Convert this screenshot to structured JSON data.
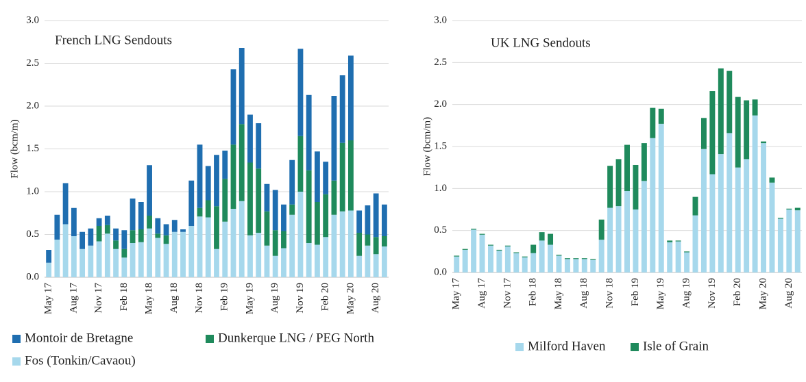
{
  "chart_data": [
    {
      "type": "bar",
      "stacked": true,
      "title": "French LNG Sendouts",
      "y_label": "Flow (bcm/m)",
      "categories": [
        "May 17",
        null,
        null,
        "Aug 17",
        null,
        null,
        "Nov 17",
        null,
        null,
        "Feb 18",
        null,
        null,
        "May 18",
        null,
        null,
        "Aug 18",
        null,
        null,
        "Nov 18",
        null,
        null,
        "Feb 19",
        null,
        null,
        "May 19",
        null,
        null,
        "Aug 19",
        null,
        null,
        "Nov 19",
        null,
        null,
        "Feb 20",
        null,
        null,
        "May 20",
        null,
        null,
        "Aug 20",
        null
      ],
      "ylim": [
        0,
        3
      ],
      "grid": true,
      "yticks": [
        {
          "value": 0,
          "label": "0.0"
        },
        {
          "value": 0.5,
          "label": "0.5"
        },
        {
          "value": 1,
          "label": "1.0"
        },
        {
          "value": 1.5,
          "label": "1.5"
        },
        {
          "value": 2,
          "label": "2.0"
        },
        {
          "value": 2.5,
          "label": "2.5"
        },
        {
          "value": 3,
          "label": "3.0"
        }
      ],
      "series": [
        {
          "name": "Fos (Tonkin/Cavaou)",
          "color": "#a6d8ec",
          "values": [
            0.17,
            0.44,
            0.62,
            0.48,
            0.33,
            0.37,
            0.42,
            0.51,
            0.33,
            0.23,
            0.4,
            0.41,
            0.57,
            0.46,
            0.39,
            0.53,
            0.53,
            0.6,
            0.71,
            0.7,
            0.33,
            0.65,
            0.8,
            0.89,
            0.49,
            0.52,
            0.37,
            0.25,
            0.34,
            0.73,
            1.0,
            0.4,
            0.38,
            0.47,
            0.73,
            0.77,
            0.78,
            0.25,
            0.37,
            0.27,
            0.36
          ]
        },
        {
          "name": "Dunkerque LNG / PEG North",
          "color": "#1f8a5c",
          "values": [
            0,
            0,
            0,
            0,
            0,
            0,
            0.18,
            0.1,
            0.1,
            0.1,
            0.15,
            0.15,
            0.15,
            0.05,
            0.1,
            0,
            0,
            0,
            0.1,
            0.2,
            0.5,
            0.5,
            0.75,
            0.9,
            0.85,
            0.75,
            0.4,
            0.3,
            0.2,
            0.12,
            0.65,
            0.85,
            0.5,
            0.5,
            0.4,
            0.8,
            0.82,
            0.27,
            0.13,
            0.2,
            0.12
          ]
        },
        {
          "name": "Montoir de Bretagne",
          "color": "#1f6eb0",
          "values": [
            0.15,
            0.29,
            0.48,
            0.33,
            0.2,
            0.2,
            0.09,
            0.11,
            0.14,
            0.22,
            0.37,
            0.32,
            0.59,
            0.18,
            0.13,
            0.14,
            0.03,
            0.53,
            0.74,
            0.4,
            0.6,
            0.33,
            0.88,
            0.89,
            0.56,
            0.53,
            0.32,
            0.47,
            0.31,
            0.52,
            1.02,
            0.88,
            0.59,
            0.38,
            0.99,
            0.79,
            0.99,
            0.26,
            0.34,
            0.51,
            0.37
          ]
        }
      ]
    },
    {
      "type": "bar",
      "stacked": true,
      "title": "UK LNG Sendouts",
      "y_label": "Flow (bcm/m)",
      "categories": [
        "May 17",
        null,
        null,
        "Aug 17",
        null,
        null,
        "Nov 17",
        null,
        null,
        "Feb 18",
        null,
        null,
        "May 18",
        null,
        null,
        "Aug 18",
        null,
        null,
        "Nov 18",
        null,
        null,
        "Feb 19",
        null,
        null,
        "May 19",
        null,
        null,
        "Aug 19",
        null,
        null,
        "Nov 19",
        null,
        null,
        "Feb 20",
        null,
        null,
        "May 20",
        null,
        null,
        "Aug 20",
        null
      ],
      "ylim": [
        0,
        3
      ],
      "grid": true,
      "yticks": [
        {
          "value": 0,
          "label": "0.0"
        },
        {
          "value": 0.5,
          "label": "0.5"
        },
        {
          "value": 1,
          "label": "1.0"
        },
        {
          "value": 1.5,
          "label": "1.5"
        },
        {
          "value": 2,
          "label": "2.0"
        },
        {
          "value": 2.5,
          "label": "2.5"
        },
        {
          "value": 3,
          "label": "3.0"
        }
      ],
      "series": [
        {
          "name": "Milford Haven",
          "color": "#a6d8ec",
          "values": [
            0.19,
            0.27,
            0.51,
            0.45,
            0.32,
            0.26,
            0.31,
            0.23,
            0.18,
            0.23,
            0.38,
            0.33,
            0.2,
            0.16,
            0.16,
            0.16,
            0.15,
            0.39,
            0.77,
            0.79,
            0.97,
            0.75,
            1.09,
            1.6,
            1.77,
            0.36,
            0.37,
            0.24,
            0.68,
            1.47,
            1.17,
            1.41,
            1.66,
            1.25,
            1.35,
            1.87,
            1.54,
            1.07,
            0.64,
            0.75,
            0.74
          ]
        },
        {
          "name": "Isle of Grain",
          "color": "#1f8a5c",
          "values": [
            0.01,
            0.01,
            0.01,
            0.01,
            0.01,
            0.01,
            0.01,
            0.01,
            0.01,
            0.1,
            0.1,
            0.13,
            0.01,
            0.01,
            0.01,
            0.01,
            0.01,
            0.24,
            0.5,
            0.56,
            0.55,
            0.53,
            0.45,
            0.36,
            0.18,
            0.02,
            0.01,
            0.01,
            0.22,
            0.37,
            0.99,
            1.02,
            0.74,
            0.84,
            0.7,
            0.19,
            0.02,
            0.06,
            0.01,
            0.01,
            0.03
          ]
        }
      ]
    }
  ]
}
